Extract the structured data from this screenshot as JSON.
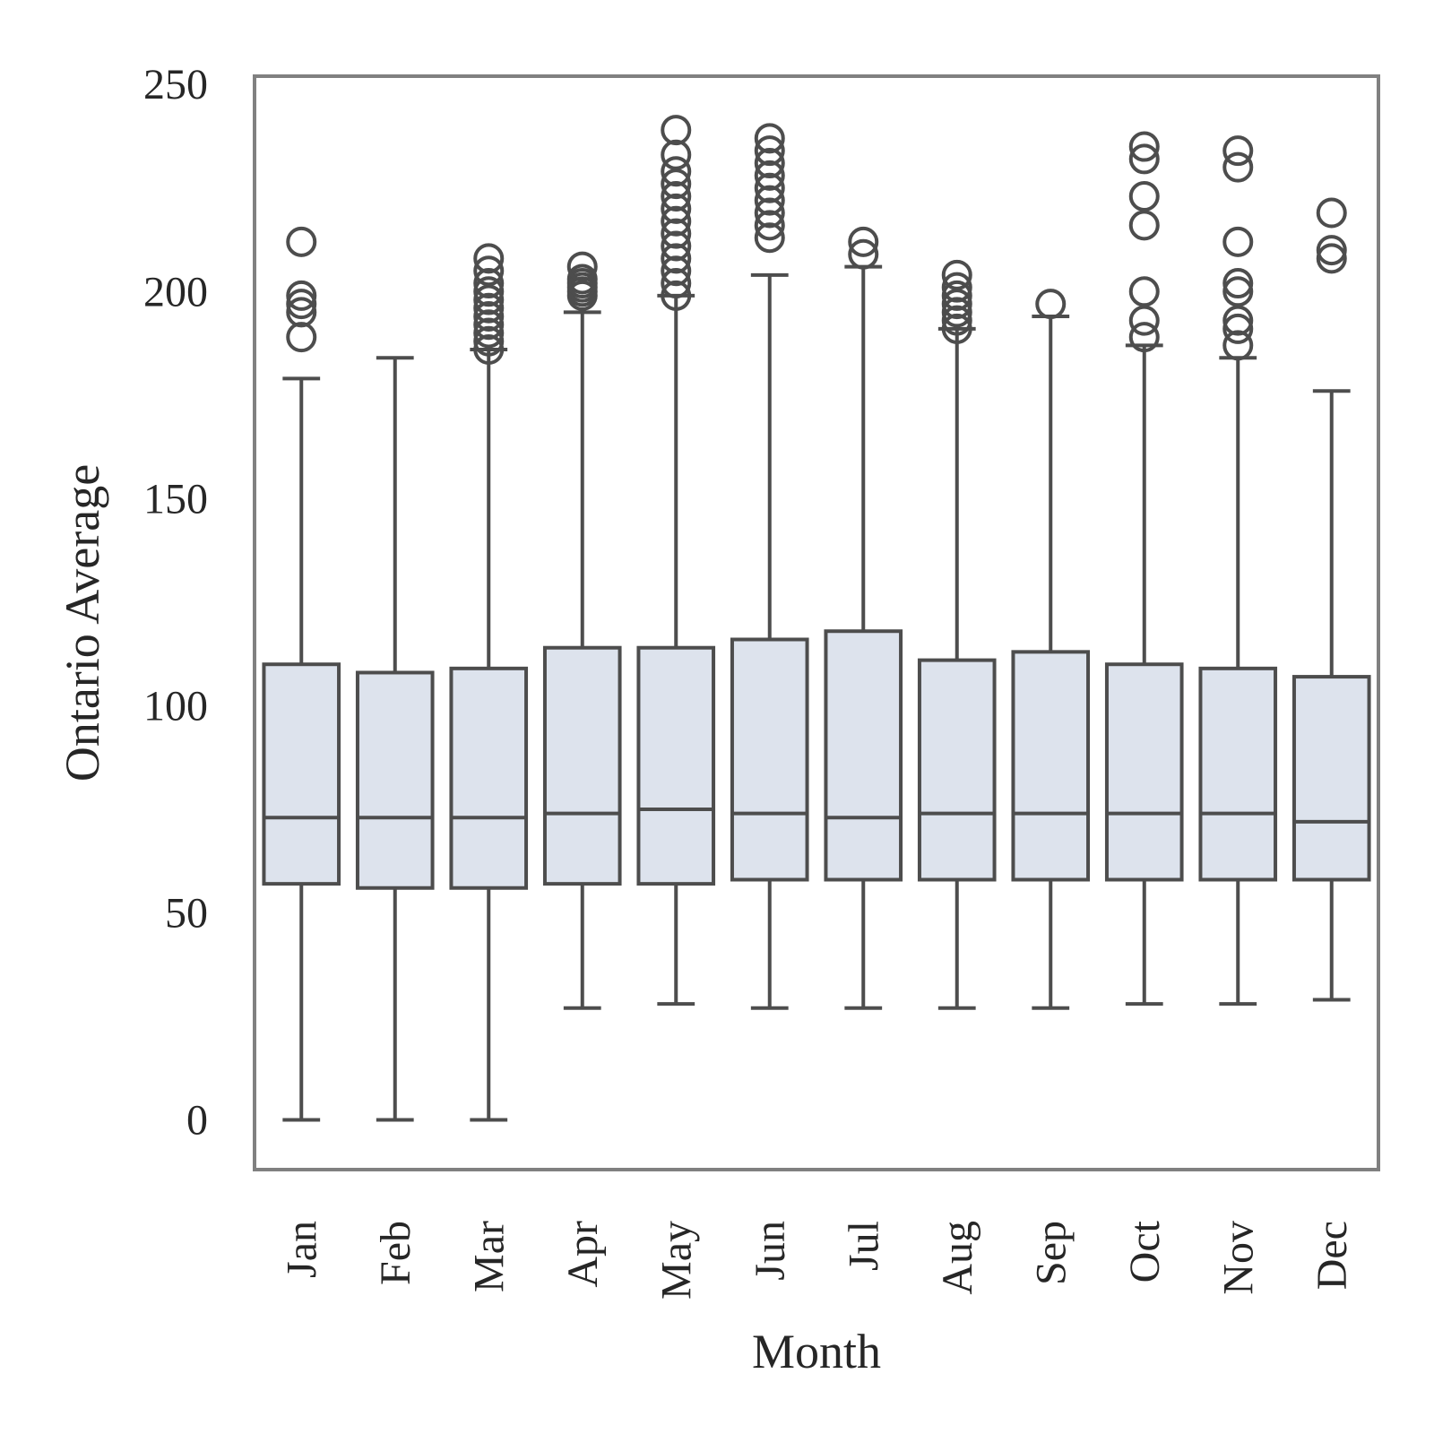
{
  "chart_data": {
    "type": "boxplot",
    "xlabel": "Month",
    "ylabel": "Ontario Average",
    "ylim": [
      -12,
      252
    ],
    "yticks": [
      0,
      50,
      100,
      150,
      200,
      250
    ],
    "categories": [
      "Jan",
      "Feb",
      "Mar",
      "Apr",
      "May",
      "Jun",
      "Jul",
      "Aug",
      "Sep",
      "Oct",
      "Nov",
      "Dec"
    ],
    "box_fill": "#dde3ed",
    "line_color": "#4d4d4d",
    "frame_color": "#808080",
    "legend": "none",
    "grid": false,
    "boxes": [
      {
        "category": "Jan",
        "whisker_low": 0,
        "q1": 57,
        "median": 73,
        "q3": 110,
        "whisker_high": 179,
        "outliers": [
          189,
          195,
          197,
          199,
          212
        ]
      },
      {
        "category": "Feb",
        "whisker_low": 0,
        "q1": 56,
        "median": 73,
        "q3": 108,
        "whisker_high": 184,
        "outliers": []
      },
      {
        "category": "Mar",
        "whisker_low": 0,
        "q1": 56,
        "median": 73,
        "q3": 109,
        "whisker_high": 186,
        "outliers": [
          186,
          188,
          190,
          192,
          194,
          196,
          198,
          200,
          202,
          205,
          208
        ]
      },
      {
        "category": "Apr",
        "whisker_low": 27,
        "q1": 57,
        "median": 74,
        "q3": 114,
        "whisker_high": 195,
        "outliers": [
          199,
          200,
          201,
          202,
          203,
          206
        ]
      },
      {
        "category": "May",
        "whisker_low": 28,
        "q1": 57,
        "median": 75,
        "q3": 114,
        "whisker_high": 199,
        "outliers": [
          199,
          202,
          205,
          208,
          211,
          214,
          217,
          220,
          223,
          226,
          229,
          233,
          239
        ]
      },
      {
        "category": "Jun",
        "whisker_low": 27,
        "q1": 58,
        "median": 74,
        "q3": 116,
        "whisker_high": 204,
        "outliers": [
          213,
          216,
          219,
          222,
          225,
          228,
          231,
          234,
          237
        ]
      },
      {
        "category": "Jul",
        "whisker_low": 27,
        "q1": 58,
        "median": 73,
        "q3": 118,
        "whisker_high": 206,
        "outliers": [
          209,
          212
        ]
      },
      {
        "category": "Aug",
        "whisker_low": 27,
        "q1": 58,
        "median": 74,
        "q3": 111,
        "whisker_high": 191,
        "outliers": [
          191,
          193,
          195,
          197,
          199,
          201,
          204
        ]
      },
      {
        "category": "Sep",
        "whisker_low": 27,
        "q1": 58,
        "median": 74,
        "q3": 113,
        "whisker_high": 194,
        "outliers": [
          197
        ]
      },
      {
        "category": "Oct",
        "whisker_low": 28,
        "q1": 58,
        "median": 74,
        "q3": 110,
        "whisker_high": 187,
        "outliers": [
          189,
          193,
          200,
          216,
          223,
          232,
          235
        ]
      },
      {
        "category": "Nov",
        "whisker_low": 28,
        "q1": 58,
        "median": 74,
        "q3": 109,
        "whisker_high": 184,
        "outliers": [
          187,
          191,
          193,
          200,
          202,
          212,
          230,
          234
        ]
      },
      {
        "category": "Dec",
        "whisker_low": 29,
        "q1": 58,
        "median": 72,
        "q3": 107,
        "whisker_high": 176,
        "outliers": [
          208,
          210,
          219
        ]
      }
    ]
  }
}
